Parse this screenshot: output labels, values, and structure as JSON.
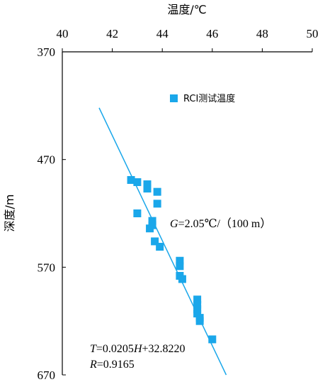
{
  "colors": {
    "marker": "#1aa7ea",
    "fit_line": "#1aa7ea",
    "axis": "#000000"
  },
  "chart_data": {
    "type": "scatter",
    "xlabel": "温度/℃",
    "ylabel": "深度/m",
    "x_axis_position": "top",
    "y_axis_inverted": true,
    "xlim": [
      40,
      50
    ],
    "ylim": [
      370,
      670
    ],
    "xticks": [
      40,
      42,
      44,
      46,
      48,
      50
    ],
    "yticks": [
      370,
      470,
      570,
      670
    ],
    "grid": false,
    "legend": {
      "position": "upper-center",
      "entries": [
        "RCI测试温度"
      ]
    },
    "series": [
      {
        "name": "RCI测试温度",
        "marker": "square",
        "points": [
          {
            "x": 42.75,
            "y": 489
          },
          {
            "x": 43.0,
            "y": 491
          },
          {
            "x": 43.4,
            "y": 493
          },
          {
            "x": 43.4,
            "y": 497
          },
          {
            "x": 43.8,
            "y": 500
          },
          {
            "x": 43.8,
            "y": 511
          },
          {
            "x": 43.0,
            "y": 520
          },
          {
            "x": 43.6,
            "y": 527
          },
          {
            "x": 43.6,
            "y": 531
          },
          {
            "x": 43.5,
            "y": 534
          },
          {
            "x": 43.7,
            "y": 546
          },
          {
            "x": 43.9,
            "y": 551
          },
          {
            "x": 44.7,
            "y": 564
          },
          {
            "x": 44.7,
            "y": 569
          },
          {
            "x": 44.7,
            "y": 578
          },
          {
            "x": 44.8,
            "y": 581
          },
          {
            "x": 45.4,
            "y": 600
          },
          {
            "x": 45.4,
            "y": 605
          },
          {
            "x": 45.4,
            "y": 609
          },
          {
            "x": 45.4,
            "y": 613
          },
          {
            "x": 45.5,
            "y": 617
          },
          {
            "x": 45.5,
            "y": 620
          },
          {
            "x": 46.0,
            "y": 637
          }
        ]
      }
    ],
    "fit": {
      "slope": 0.0205,
      "intercept": 32.822,
      "depth_range": [
        422,
        670
      ],
      "equation_parts": {
        "var_t": "T",
        "eq1": "=0.0205",
        "var_h": "H",
        "eq2": "+32.8220"
      },
      "r_parts": {
        "var_r": "R",
        "eq": "=0.9165"
      },
      "gradient_parts": {
        "var_g": "G",
        "eq": "=2.05℃/（100 m）"
      }
    }
  }
}
